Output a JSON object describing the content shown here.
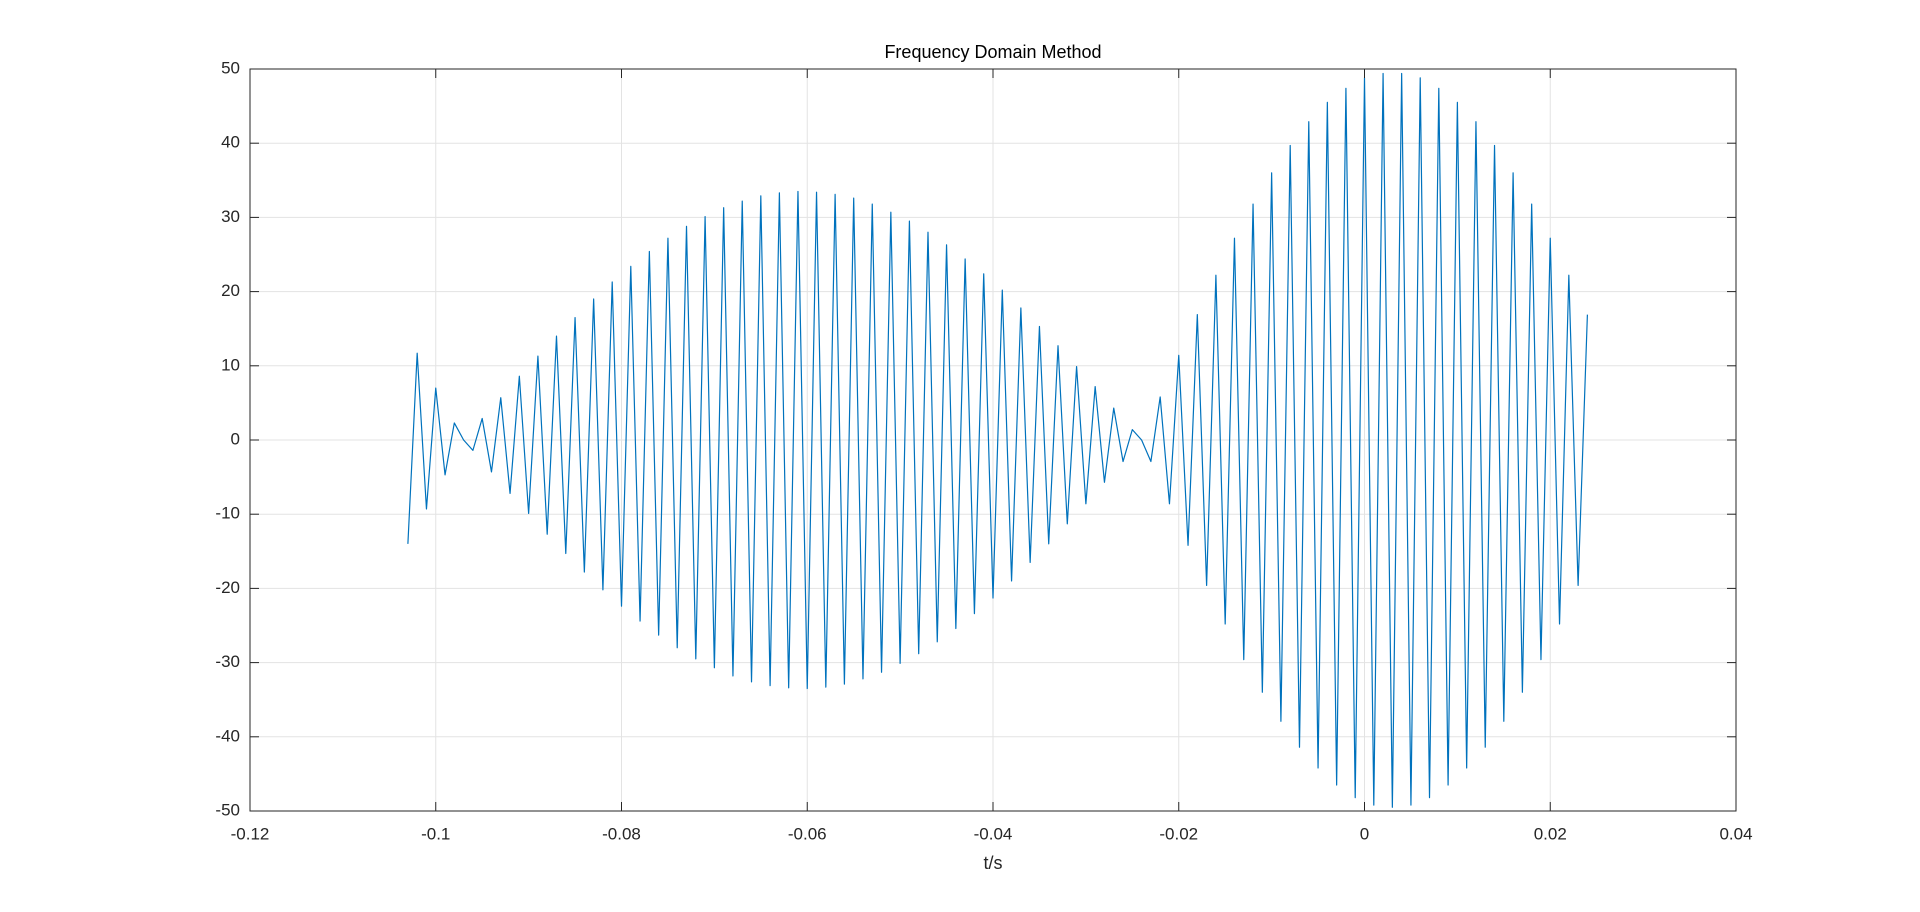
{
  "chart_data": {
    "type": "line",
    "title": "Frequency Domain Method",
    "xlabel": "t/s",
    "color": "#0072bd",
    "grid": true,
    "xlim": [
      -0.12,
      0.04
    ],
    "xticks": [
      -0.12,
      -0.1,
      -0.08,
      -0.06,
      -0.04,
      -0.02,
      0,
      0.02,
      0.04
    ],
    "ylim": [
      -50,
      50
    ],
    "yticks": [
      -50,
      -40,
      -30,
      -20,
      -10,
      0,
      10,
      20,
      30,
      40,
      50
    ],
    "x": [
      -0.103,
      -0.102,
      -0.101,
      -0.1,
      -0.099,
      -0.098,
      -0.097,
      -0.096,
      -0.095,
      -0.094,
      -0.093,
      -0.092,
      -0.091,
      -0.09,
      -0.089,
      -0.088,
      -0.087,
      -0.086,
      -0.085,
      -0.084,
      -0.083,
      -0.082,
      -0.081,
      -0.08,
      -0.079,
      -0.078,
      -0.077,
      -0.076,
      -0.075,
      -0.074,
      -0.073,
      -0.072,
      -0.071,
      -0.07,
      -0.069,
      -0.068,
      -0.067,
      -0.066,
      -0.065,
      -0.064,
      -0.063,
      -0.062,
      -0.061,
      -0.06,
      -0.059,
      -0.058,
      -0.057,
      -0.056,
      -0.055,
      -0.054,
      -0.053,
      -0.052,
      -0.051,
      -0.05,
      -0.049,
      -0.048,
      -0.047,
      -0.046,
      -0.045,
      -0.044,
      -0.043,
      -0.042,
      -0.041,
      -0.04,
      -0.039,
      -0.038,
      -0.037,
      -0.036,
      -0.035,
      -0.034,
      -0.033,
      -0.032,
      -0.031,
      -0.03,
      -0.029,
      -0.028,
      -0.027,
      -0.026,
      -0.025,
      -0.024,
      -0.023,
      -0.022,
      -0.021,
      -0.02,
      -0.019,
      -0.018,
      -0.017,
      -0.016,
      -0.015,
      -0.014,
      -0.013,
      -0.012,
      -0.011,
      -0.01,
      -0.009,
      -0.008,
      -0.007,
      -0.006,
      -0.005,
      -0.004,
      -0.003,
      -0.002,
      -0.001,
      0,
      0.001,
      0.002,
      0.003,
      0.004,
      0.005,
      0.006,
      0.007,
      0.008,
      0.009,
      0.01,
      0.011,
      0.012,
      0.013,
      0.014,
      0.015,
      0.016,
      0.017,
      0.018,
      0.019,
      0.02,
      0.021,
      0.022,
      0.023,
      0.024
    ],
    "values": [
      -14,
      11.7,
      -9.3,
      7,
      -4.7,
      2.3,
      0,
      -1.4,
      2.9,
      -4.3,
      5.7,
      -7.2,
      8.6,
      -9.9,
      11.3,
      -12.7,
      14,
      -15.3,
      16.5,
      -17.8,
      19,
      -20.2,
      21.3,
      -22.4,
      23.4,
      -24.4,
      25.4,
      -26.3,
      27.2,
      -28,
      28.8,
      -29.5,
      30.1,
      -30.7,
      31.3,
      -31.8,
      32.2,
      -32.6,
      32.9,
      -33.1,
      33.3,
      -33.4,
      33.5,
      -33.5,
      33.4,
      -33.3,
      33.1,
      -32.9,
      32.6,
      -32.2,
      31.8,
      -31.3,
      30.7,
      -30.1,
      29.5,
      -28.8,
      28,
      -27.2,
      26.3,
      -25.4,
      24.4,
      -23.4,
      22.4,
      -21.3,
      20.2,
      -19,
      17.8,
      -16.5,
      15.3,
      -14,
      12.7,
      -11.3,
      9.9,
      -8.6,
      7.2,
      -5.7,
      4.3,
      -2.9,
      1.4,
      0,
      -2.9,
      5.8,
      -8.6,
      11.4,
      -14.2,
      16.9,
      -19.6,
      22.2,
      -24.8,
      27.2,
      -29.6,
      31.8,
      -34,
      36,
      -37.9,
      39.7,
      -41.4,
      42.9,
      -44.2,
      45.5,
      -46.5,
      47.4,
      -48.2,
      48.8,
      -49.2,
      49.4,
      -49.5,
      49.4,
      -49.2,
      48.8,
      -48.2,
      47.4,
      -46.5,
      45.5,
      -44.2,
      42.9,
      -41.4,
      39.7,
      -37.9,
      36,
      -34,
      31.8,
      -29.6,
      27.2,
      -24.8,
      22.2,
      -19.6,
      16.9
    ]
  }
}
